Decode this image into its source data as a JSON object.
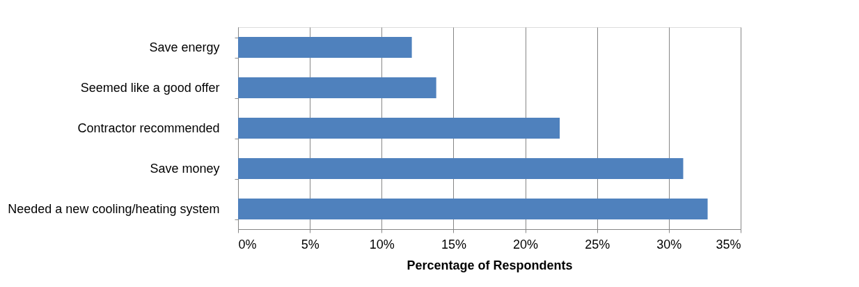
{
  "chart_data": {
    "type": "bar",
    "orientation": "horizontal",
    "categories": [
      "Save energy",
      "Seemed like a good offer",
      "Contractor recommended",
      "Save money",
      "Needed a new cooling/heating system"
    ],
    "values": [
      12.1,
      13.8,
      22.4,
      31.0,
      32.7
    ],
    "color": "#4f81bd",
    "xlabel": "Percentage of Respondents",
    "xlim": [
      0,
      35
    ],
    "xticks": [
      {
        "value": 0,
        "label": "0%"
      },
      {
        "value": 5,
        "label": "5%"
      },
      {
        "value": 10,
        "label": "10%"
      },
      {
        "value": 15,
        "label": "15%"
      },
      {
        "value": 20,
        "label": "20%"
      },
      {
        "value": 25,
        "label": "25%"
      },
      {
        "value": 30,
        "label": "30%"
      },
      {
        "value": 35,
        "label": "35%"
      }
    ],
    "grid": "x"
  }
}
